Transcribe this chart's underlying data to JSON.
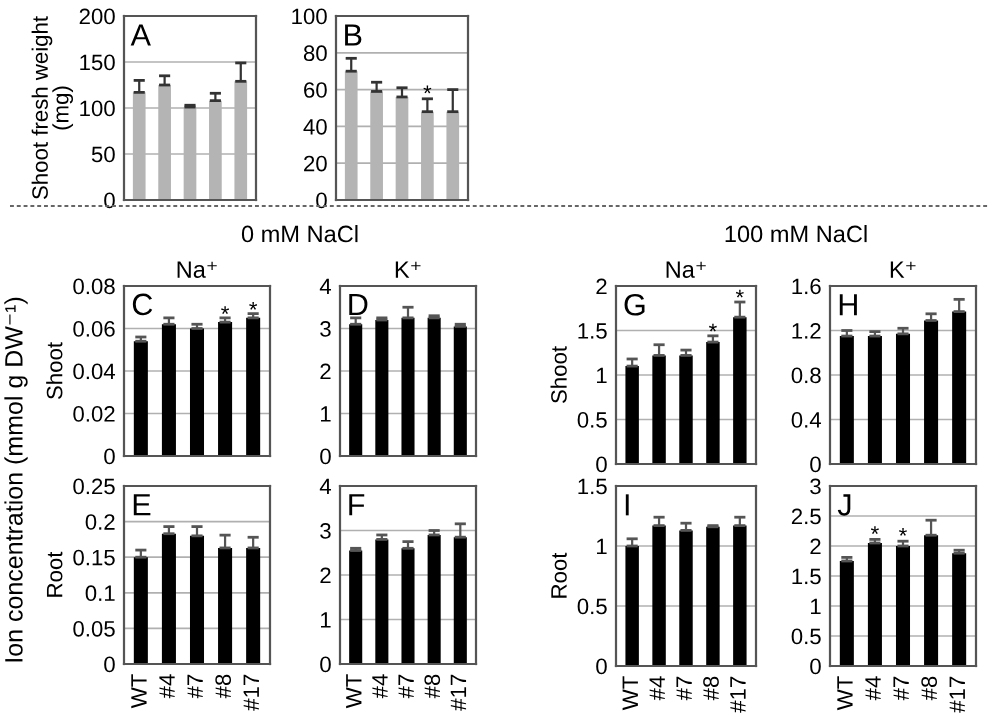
{
  "chart_data": [
    {
      "type": "bar",
      "ylabel": "Shoot fresh weight\n(mg)",
      "categories": [
        "WT",
        "#4",
        "#7",
        "#8",
        "#17"
      ],
      "values": [
        117,
        125,
        101,
        108,
        129
      ],
      "errors": [
        13,
        10,
        2,
        8,
        20
      ],
      "color": "#b4b4b4",
      "ylim": [
        0,
        200
      ],
      "yticks": [
        0,
        50,
        100,
        150,
        200
      ],
      "grid": "y",
      "tick_labels": "y",
      "annotations": [
        "A"
      ]
    },
    {
      "type": "bar",
      "categories": [
        "WT",
        "#4",
        "#7",
        "#8",
        "#17"
      ],
      "values": [
        70,
        59,
        56,
        48,
        48
      ],
      "errors": [
        7,
        5,
        5,
        7,
        12
      ],
      "color": "#b4b4b4",
      "ylim": [
        0,
        100
      ],
      "yticks": [
        0,
        20,
        40,
        60,
        80,
        100
      ],
      "grid": "y",
      "tick_labels": "y",
      "annotations": [
        "B",
        {
          "text": "*",
          "x": "#8",
          "y": 57
        }
      ]
    },
    {
      "type": "bar",
      "title": "Na⁺",
      "ylabel": "Shoot",
      "categories": [
        "WT",
        "#4",
        "#7",
        "#8",
        "#17"
      ],
      "values": [
        0.054,
        0.062,
        0.06,
        0.063,
        0.065
      ],
      "errors": [
        0.002,
        0.003,
        0.002,
        0.002,
        0.002
      ],
      "color": "#000000",
      "ylim": [
        0,
        0.08
      ],
      "yticks": [
        0,
        0.02,
        0.04,
        0.06,
        0.08
      ],
      "grid": "y",
      "tick_labels": "y",
      "annotations": [
        "C",
        "0 mM NaCl",
        "Ion concentration (mmol g DW⁻¹)",
        {
          "text": "*",
          "x": "#8",
          "y": 0.066
        },
        {
          "text": "*",
          "x": "#17",
          "y": 0.068
        }
      ]
    },
    {
      "type": "bar",
      "title": "K⁺",
      "categories": [
        "WT",
        "#4",
        "#7",
        "#8",
        "#17"
      ],
      "values": [
        3.1,
        3.2,
        3.25,
        3.25,
        3.05
      ],
      "errors": [
        0.15,
        0.05,
        0.25,
        0.05,
        0.05
      ],
      "color": "#000000",
      "ylim": [
        0,
        4
      ],
      "yticks": [
        0,
        1,
        2,
        3,
        4
      ],
      "grid": "y",
      "tick_labels": "y",
      "annotations": [
        "D"
      ]
    },
    {
      "type": "bar",
      "ylabel": "Root",
      "categories": [
        "WT",
        "#4",
        "#7",
        "#8",
        "#17"
      ],
      "values": [
        0.15,
        0.183,
        0.18,
        0.163,
        0.163
      ],
      "errors": [
        0.01,
        0.01,
        0.013,
        0.018,
        0.015
      ],
      "color": "#000000",
      "ylim": [
        0,
        0.25
      ],
      "yticks": [
        0,
        0.05,
        0.1,
        0.15,
        0.2,
        0.25
      ],
      "grid": "y",
      "annotations": [
        "E"
      ]
    },
    {
      "type": "bar",
      "categories": [
        "WT",
        "#4",
        "#7",
        "#8",
        "#17"
      ],
      "values": [
        2.55,
        2.8,
        2.6,
        2.9,
        2.85
      ],
      "errors": [
        0.05,
        0.1,
        0.15,
        0.1,
        0.3
      ],
      "color": "#000000",
      "ylim": [
        0,
        4
      ],
      "yticks": [
        0,
        1,
        2,
        3,
        4
      ],
      "grid": "y",
      "annotations": [
        "F"
      ]
    },
    {
      "type": "bar",
      "title": "Na⁺",
      "ylabel": "Shoot",
      "categories": [
        "WT",
        "#4",
        "#7",
        "#8",
        "#17"
      ],
      "values": [
        1.1,
        1.22,
        1.22,
        1.37,
        1.65
      ],
      "errors": [
        0.08,
        0.12,
        0.06,
        0.07,
        0.17
      ],
      "color": "#000000",
      "ylim": [
        0,
        2
      ],
      "yticks": [
        0,
        0.5,
        1,
        1.5,
        2
      ],
      "grid": "y",
      "tick_labels": "y",
      "annotations": [
        "G",
        "100 mM NaCl",
        {
          "text": "*",
          "x": "#8",
          "y": 1.47
        },
        {
          "text": "*",
          "x": "#17",
          "y": 1.85
        }
      ]
    },
    {
      "type": "bar",
      "title": "K⁺",
      "categories": [
        "WT",
        "#4",
        "#7",
        "#8",
        "#17"
      ],
      "values": [
        1.15,
        1.15,
        1.17,
        1.29,
        1.37
      ],
      "errors": [
        0.05,
        0.04,
        0.05,
        0.06,
        0.11
      ],
      "color": "#000000",
      "ylim": [
        0,
        1.6
      ],
      "yticks": [
        0,
        0.4,
        0.8,
        1.2,
        1.6
      ],
      "grid": "y",
      "tick_labels": "y",
      "annotations": [
        "H"
      ]
    },
    {
      "type": "bar",
      "ylabel": "Root",
      "categories": [
        "WT",
        "#4",
        "#7",
        "#8",
        "#17"
      ],
      "values": [
        1.0,
        1.17,
        1.13,
        1.16,
        1.17
      ],
      "errors": [
        0.06,
        0.07,
        0.06,
        0.01,
        0.07
      ],
      "color": "#000000",
      "ylim": [
        0,
        1.5
      ],
      "yticks": [
        0,
        0.5,
        1,
        1.5
      ],
      "grid": "y",
      "annotations": [
        "I"
      ]
    },
    {
      "type": "bar",
      "categories": [
        "WT",
        "#4",
        "#7",
        "#8",
        "#17"
      ],
      "values": [
        1.75,
        2.05,
        2.0,
        2.18,
        1.88
      ],
      "errors": [
        0.06,
        0.06,
        0.08,
        0.25,
        0.05
      ],
      "color": "#000000",
      "ylim": [
        0,
        3
      ],
      "yticks": [
        0,
        0.5,
        1,
        1.5,
        2,
        2.5,
        3
      ],
      "grid": "y",
      "annotations": [
        "J",
        {
          "text": "*",
          "x": "#4",
          "y": 2.17
        },
        {
          "text": "*",
          "x": "#7",
          "y": 2.14
        }
      ]
    }
  ]
}
